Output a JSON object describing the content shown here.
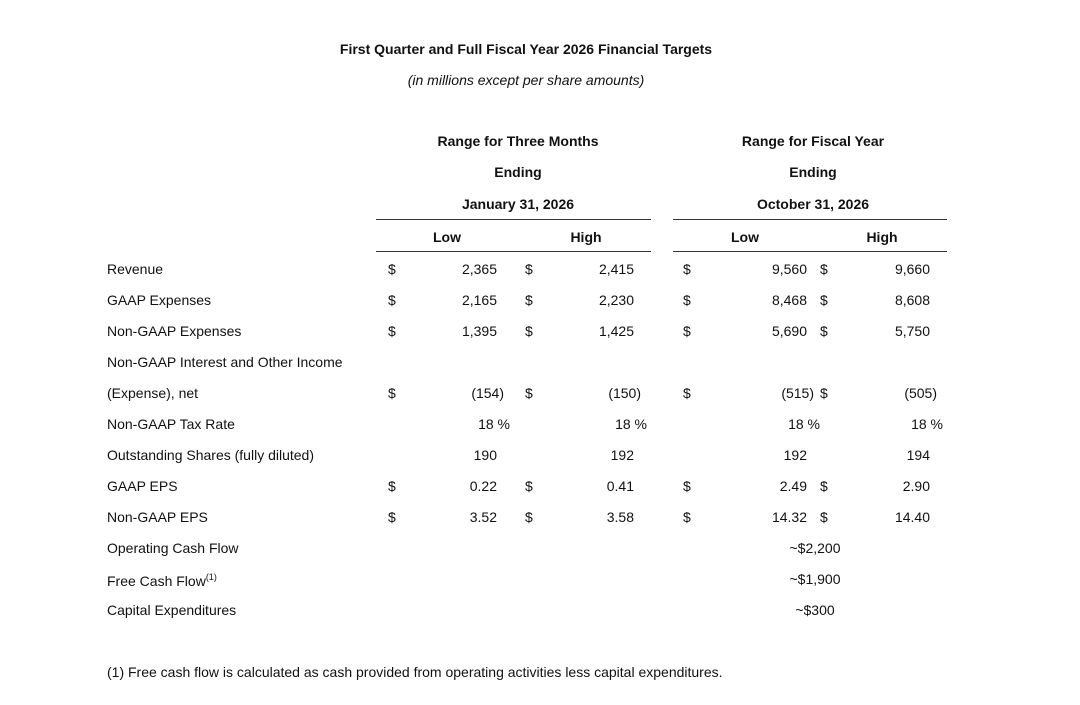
{
  "title": "First Quarter and Full Fiscal Year 2026 Financial Targets",
  "subtitle": "(in millions except per share amounts)",
  "groups": [
    {
      "lines": [
        "Range for Three Months",
        "Ending",
        "January 31, 2026"
      ],
      "columns": [
        "Low",
        "High"
      ]
    },
    {
      "lines": [
        "Range for Fiscal Year",
        "Ending",
        "October 31, 2026"
      ],
      "columns": [
        "Low",
        "High"
      ]
    }
  ],
  "rows": [
    {
      "label": "Revenue",
      "cells": [
        {
          "sign": "$",
          "value": "2,365"
        },
        {
          "sign": "$",
          "value": "2,415"
        },
        {
          "sign": "$",
          "value": "9,560"
        },
        {
          "sign": "$",
          "value": "9,660"
        }
      ]
    },
    {
      "label": "GAAP Expenses",
      "cells": [
        {
          "sign": "$",
          "value": "2,165"
        },
        {
          "sign": "$",
          "value": "2,230"
        },
        {
          "sign": "$",
          "value": "8,468"
        },
        {
          "sign": "$",
          "value": "8,608"
        }
      ]
    },
    {
      "label": "Non-GAAP Expenses",
      "cells": [
        {
          "sign": "$",
          "value": "1,395"
        },
        {
          "sign": "$",
          "value": "1,425"
        },
        {
          "sign": "$",
          "value": "5,690"
        },
        {
          "sign": "$",
          "value": "5,750"
        }
      ]
    },
    {
      "label": "Non-GAAP Interest and Other Income"
    },
    {
      "label": "(Expense), net",
      "cells": [
        {
          "sign": "$",
          "value": "(154)"
        },
        {
          "sign": "$",
          "value": "(150)"
        },
        {
          "sign": "$",
          "value": "(515)"
        },
        {
          "sign": "$",
          "value": "(505)"
        }
      ]
    },
    {
      "label": "Non-GAAP Tax Rate",
      "cells": [
        {
          "value": "18 %"
        },
        {
          "value": "18 %"
        },
        {
          "value": "18 %"
        },
        {
          "value": "18 %"
        }
      ]
    },
    {
      "label": "Outstanding Shares (fully diluted)",
      "cells": [
        {
          "value": "190"
        },
        {
          "value": "192"
        },
        {
          "value": "192"
        },
        {
          "value": "194"
        }
      ]
    },
    {
      "label": "GAAP EPS",
      "cells": [
        {
          "sign": "$",
          "value": "0.22"
        },
        {
          "sign": "$",
          "value": "0.41"
        },
        {
          "sign": "$",
          "value": "2.49"
        },
        {
          "sign": "$",
          "value": "2.90"
        }
      ]
    },
    {
      "label": "Non-GAAP EPS",
      "cells": [
        {
          "sign": "$",
          "value": "3.52"
        },
        {
          "sign": "$",
          "value": "3.58"
        },
        {
          "sign": "$",
          "value": "14.32"
        },
        {
          "sign": "$",
          "value": "14.40"
        }
      ]
    },
    {
      "label": "Operating Cash Flow",
      "span": "~$2,200"
    },
    {
      "label": "Free Cash Flow",
      "note": "(1)",
      "span": "~$1,900"
    },
    {
      "label": "Capital Expenditures",
      "span": "~$300"
    }
  ],
  "footnote": "(1) Free cash flow is calculated as cash provided from operating activities less capital expenditures."
}
